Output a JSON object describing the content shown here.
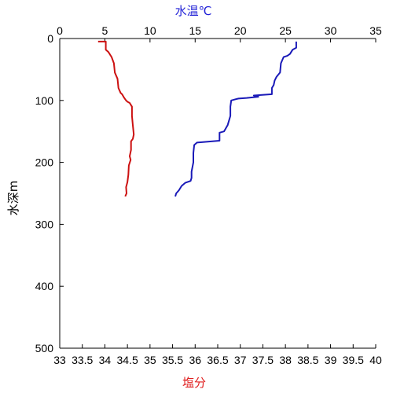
{
  "chart_data": {
    "type": "line",
    "top_axis": {
      "label": "水温℃",
      "color": "#1f1fd6",
      "range": [
        0,
        35
      ],
      "ticks": [
        0,
        5,
        10,
        15,
        20,
        25,
        30,
        35
      ]
    },
    "bottom_axis": {
      "label": "塩分",
      "color": "#e02020",
      "range": [
        33,
        40
      ],
      "ticks": [
        33,
        33.5,
        34,
        34.5,
        35,
        35.5,
        36,
        36.5,
        37,
        37.5,
        38,
        38.5,
        39,
        39.5,
        40
      ]
    },
    "y_axis": {
      "label": "水深m",
      "range": [
        0,
        500
      ],
      "inverted": true,
      "ticks": [
        0,
        100,
        200,
        300,
        400,
        500
      ]
    },
    "grid": false,
    "series": [
      {
        "axis": "bottom",
        "color": "#cc1111",
        "points": [
          [
            33.85,
            5
          ],
          [
            34.02,
            5
          ],
          [
            34.02,
            18
          ],
          [
            34.08,
            22
          ],
          [
            34.15,
            30
          ],
          [
            34.2,
            40
          ],
          [
            34.22,
            55
          ],
          [
            34.28,
            65
          ],
          [
            34.3,
            80
          ],
          [
            34.35,
            88
          ],
          [
            34.38,
            90
          ],
          [
            34.43,
            96
          ],
          [
            34.47,
            100
          ],
          [
            34.5,
            102
          ],
          [
            34.55,
            104
          ],
          [
            34.6,
            110
          ],
          [
            34.6,
            125
          ],
          [
            34.62,
            140
          ],
          [
            34.64,
            155
          ],
          [
            34.62,
            162
          ],
          [
            34.58,
            166
          ],
          [
            34.58,
            180
          ],
          [
            34.55,
            190
          ],
          [
            34.57,
            196
          ],
          [
            34.53,
            205
          ],
          [
            34.52,
            220
          ],
          [
            34.5,
            232
          ],
          [
            34.47,
            240
          ],
          [
            34.48,
            250
          ],
          [
            34.45,
            255
          ]
        ]
      },
      {
        "axis": "top",
        "color": "#1a1ab8",
        "points": [
          [
            26.2,
            5
          ],
          [
            26.2,
            15
          ],
          [
            25.8,
            18
          ],
          [
            25.5,
            25
          ],
          [
            25.2,
            28
          ],
          [
            24.8,
            30
          ],
          [
            24.5,
            40
          ],
          [
            24.4,
            55
          ],
          [
            24.0,
            62
          ],
          [
            23.8,
            68
          ],
          [
            23.7,
            75
          ],
          [
            23.5,
            80
          ],
          [
            23.5,
            90
          ],
          [
            21.5,
            92
          ],
          [
            22.0,
            94
          ],
          [
            20.7,
            96
          ],
          [
            19.8,
            97
          ],
          [
            19.5,
            98
          ],
          [
            19.0,
            100
          ],
          [
            18.9,
            110
          ],
          [
            18.9,
            125
          ],
          [
            18.6,
            140
          ],
          [
            18.2,
            150
          ],
          [
            17.7,
            152
          ],
          [
            17.7,
            165
          ],
          [
            16.0,
            167
          ],
          [
            15.2,
            168
          ],
          [
            14.9,
            172
          ],
          [
            14.8,
            185
          ],
          [
            14.8,
            200
          ],
          [
            14.6,
            215
          ],
          [
            14.6,
            225
          ],
          [
            14.5,
            230
          ],
          [
            13.9,
            233
          ],
          [
            13.5,
            238
          ],
          [
            13.2,
            245
          ],
          [
            12.9,
            250
          ],
          [
            12.8,
            255
          ]
        ]
      }
    ]
  }
}
